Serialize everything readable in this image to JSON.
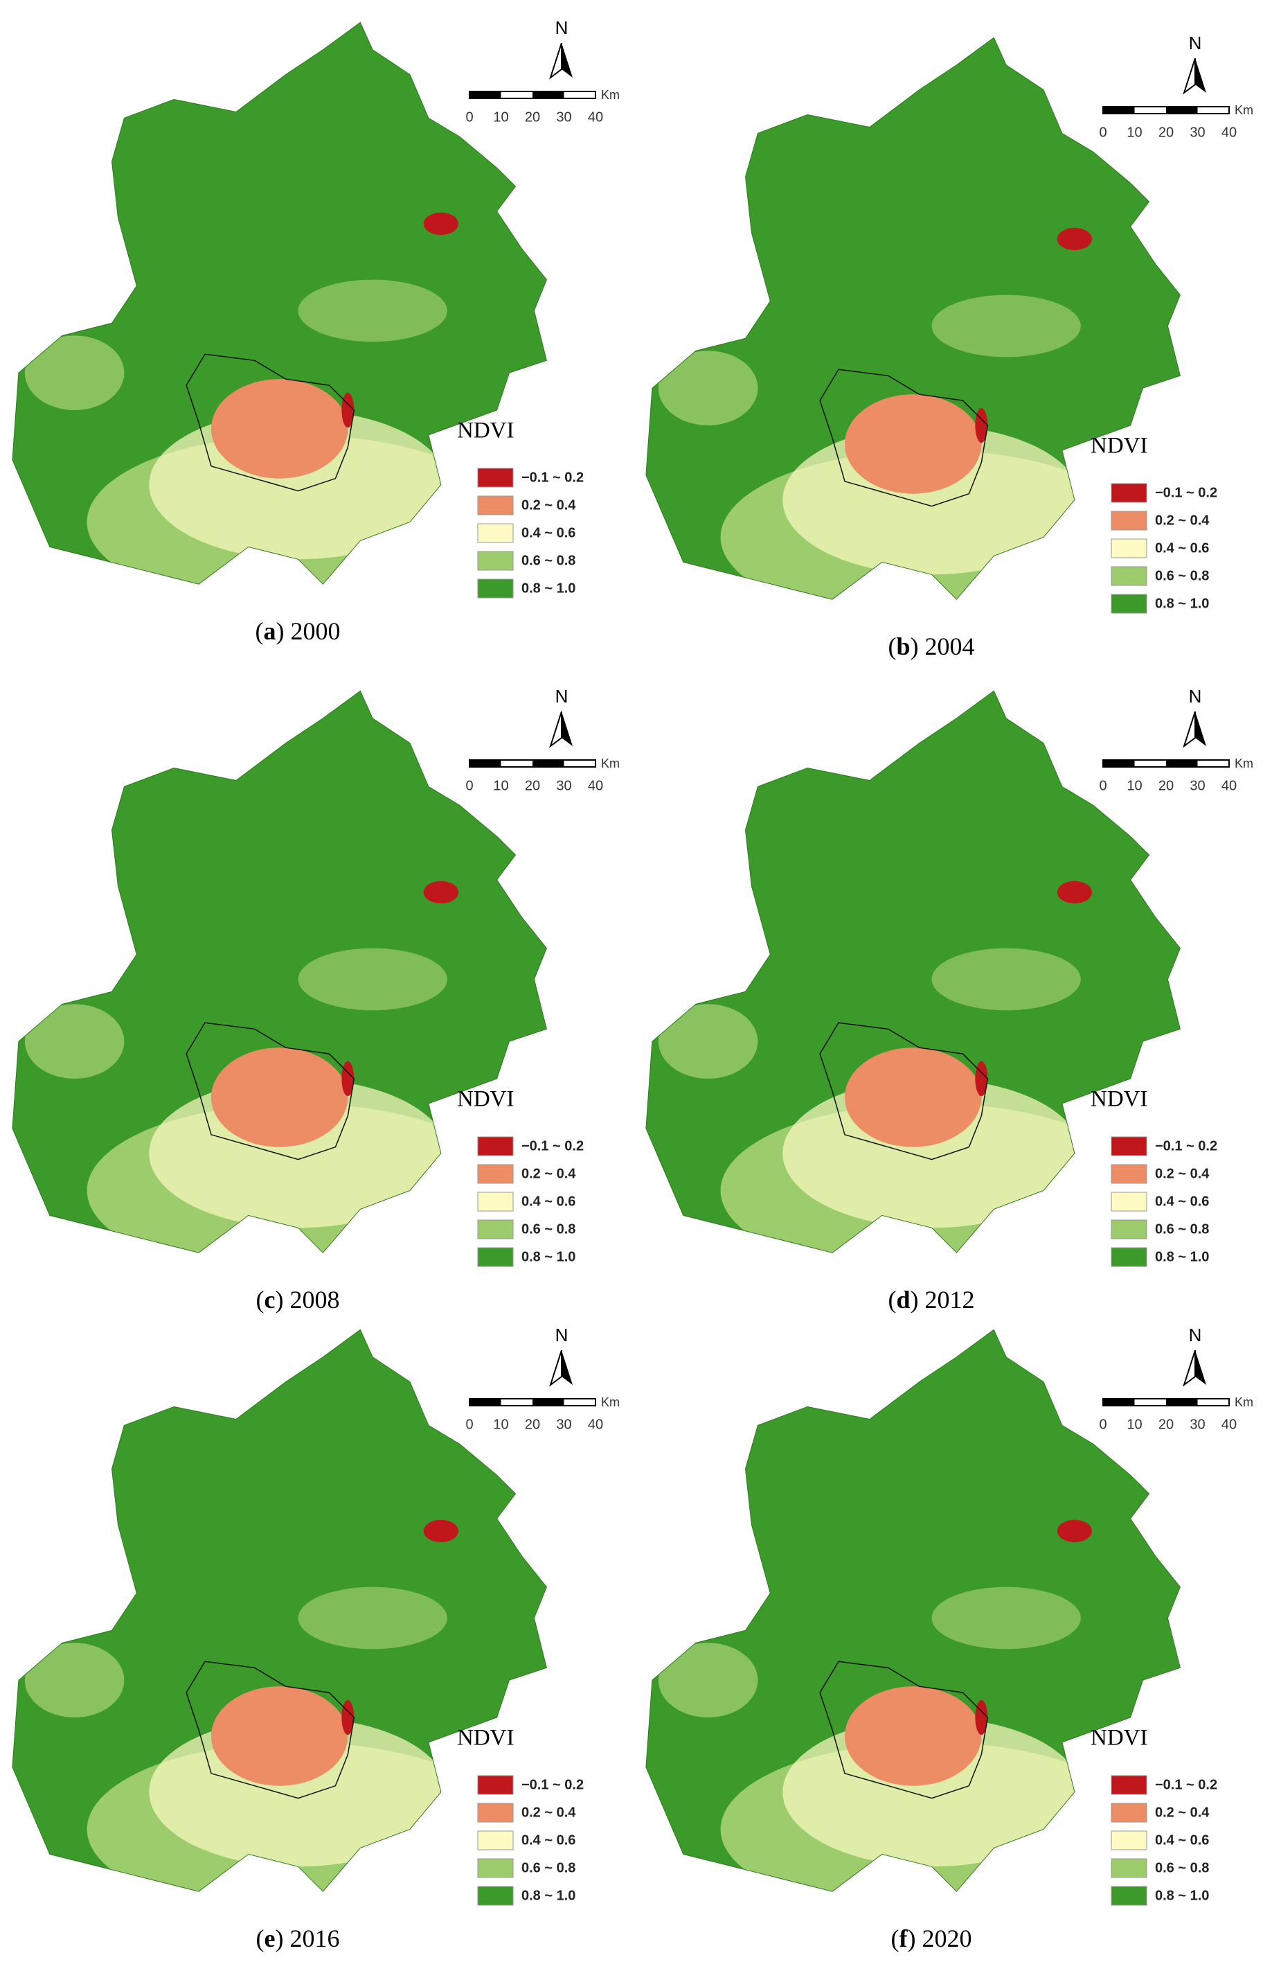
{
  "panels": [
    {
      "caption": {
        "open": "(",
        "letter": "a",
        "close": ")",
        "year": "2000"
      },
      "north": "N",
      "scale": {
        "ticks": [
          0,
          10,
          20,
          30,
          40
        ],
        "unit": "Km"
      },
      "legend": {
        "title": "NDVI",
        "items": [
          {
            "label": "−0.1 ~ 0.2",
            "color": "#c0171d"
          },
          {
            "label": "0.2 ~ 0.4",
            "color": "#ec8d66"
          },
          {
            "label": "0.4 ~ 0.6",
            "color": "#fdfbc3"
          },
          {
            "label": "0.6 ~ 0.8",
            "color": "#9ccc6c"
          },
          {
            "label": "0.8 ~ 1.0",
            "color": "#3c9a2a"
          }
        ]
      }
    },
    {
      "caption": {
        "open": "(",
        "letter": "b",
        "close": ")",
        "year": "2004"
      },
      "north": "N",
      "scale": {
        "ticks": [
          0,
          10,
          20,
          30,
          40
        ],
        "unit": "Km"
      },
      "legend": {
        "title": "NDVI",
        "items": [
          {
            "label": "−0.1 ~ 0.2",
            "color": "#c0171d"
          },
          {
            "label": "0.2 ~ 0.4",
            "color": "#ec8d66"
          },
          {
            "label": "0.4 ~ 0.6",
            "color": "#fdfbc3"
          },
          {
            "label": "0.6 ~ 0.8",
            "color": "#9ccc6c"
          },
          {
            "label": "0.8 ~ 1.0",
            "color": "#3c9a2a"
          }
        ]
      }
    },
    {
      "caption": {
        "open": "(",
        "letter": "c",
        "close": ")",
        "year": "2008"
      },
      "north": "N",
      "scale": {
        "ticks": [
          0,
          10,
          20,
          30,
          40
        ],
        "unit": "Km"
      },
      "legend": {
        "title": "NDVI",
        "items": [
          {
            "label": "−0.1 ~ 0.2",
            "color": "#c0171d"
          },
          {
            "label": "0.2 ~ 0.4",
            "color": "#ec8d66"
          },
          {
            "label": "0.4 ~ 0.6",
            "color": "#fdfbc3"
          },
          {
            "label": "0.6 ~ 0.8",
            "color": "#9ccc6c"
          },
          {
            "label": "0.8 ~ 1.0",
            "color": "#3c9a2a"
          }
        ]
      }
    },
    {
      "caption": {
        "open": "(",
        "letter": "d",
        "close": ")",
        "year": "2012"
      },
      "north": "N",
      "scale": {
        "ticks": [
          0,
          10,
          20,
          30,
          40
        ],
        "unit": "Km"
      },
      "legend": {
        "title": "NDVI",
        "items": [
          {
            "label": "−0.1 ~ 0.2",
            "color": "#c0171d"
          },
          {
            "label": "0.2 ~ 0.4",
            "color": "#ec8d66"
          },
          {
            "label": "0.4 ~ 0.6",
            "color": "#fdfbc3"
          },
          {
            "label": "0.6 ~ 0.8",
            "color": "#9ccc6c"
          },
          {
            "label": "0.8 ~ 1.0",
            "color": "#3c9a2a"
          }
        ]
      }
    },
    {
      "caption": {
        "open": "(",
        "letter": "e",
        "close": ")",
        "year": "2016"
      },
      "north": "N",
      "scale": {
        "ticks": [
          0,
          10,
          20,
          30,
          40
        ],
        "unit": "Km"
      },
      "legend": {
        "title": "NDVI",
        "items": [
          {
            "label": "−0.1 ~ 0.2",
            "color": "#c0171d"
          },
          {
            "label": "0.2 ~ 0.4",
            "color": "#ec8d66"
          },
          {
            "label": "0.4 ~ 0.6",
            "color": "#fdfbc3"
          },
          {
            "label": "0.6 ~ 0.8",
            "color": "#9ccc6c"
          },
          {
            "label": "0.8 ~ 1.0",
            "color": "#3c9a2a"
          }
        ]
      }
    },
    {
      "caption": {
        "open": "(",
        "letter": "f",
        "close": ")",
        "year": "2020"
      },
      "north": "N",
      "scale": {
        "ticks": [
          0,
          10,
          20,
          30,
          40
        ],
        "unit": "Km"
      },
      "legend": {
        "title": "NDVI",
        "items": [
          {
            "label": "−0.1 ~ 0.2",
            "color": "#c0171d"
          },
          {
            "label": "0.2 ~ 0.4",
            "color": "#ec8d66"
          },
          {
            "label": "0.4 ~ 0.6",
            "color": "#fdfbc3"
          },
          {
            "label": "0.6 ~ 0.8",
            "color": "#9ccc6c"
          },
          {
            "label": "0.8 ~ 1.0",
            "color": "#3c9a2a"
          }
        ]
      }
    }
  ]
}
